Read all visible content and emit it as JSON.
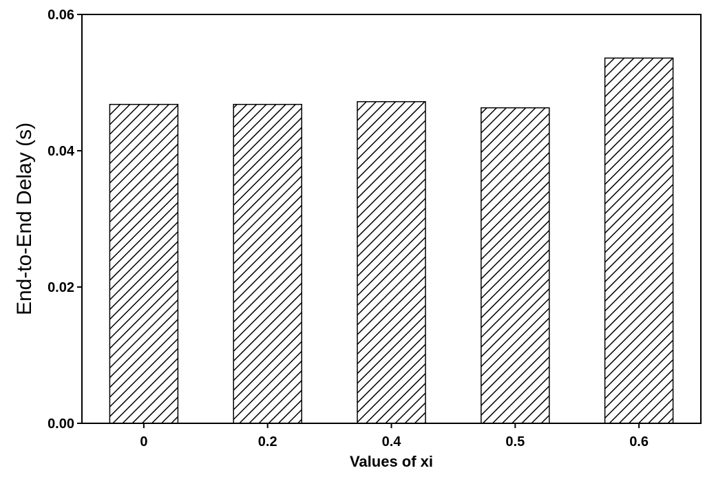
{
  "chart_data": {
    "type": "bar",
    "title": "",
    "xlabel": "Values of xi",
    "ylabel": "End-to-End Delay (s)",
    "categories": [
      "0",
      "0.2",
      "0.4",
      "0.5",
      "0.6"
    ],
    "values": [
      0.0468,
      0.0468,
      0.0472,
      0.0463,
      0.0536
    ],
    "ylim": [
      0,
      0.06
    ],
    "yticks": [
      "0.00",
      "0.02",
      "0.04",
      "0.06"
    ],
    "grid": false,
    "legend": "none",
    "bar_fill": "diagonal-hatch",
    "colors": {
      "bar_stroke": "#000000",
      "hatch": "#000000",
      "background": "#ffffff"
    }
  }
}
